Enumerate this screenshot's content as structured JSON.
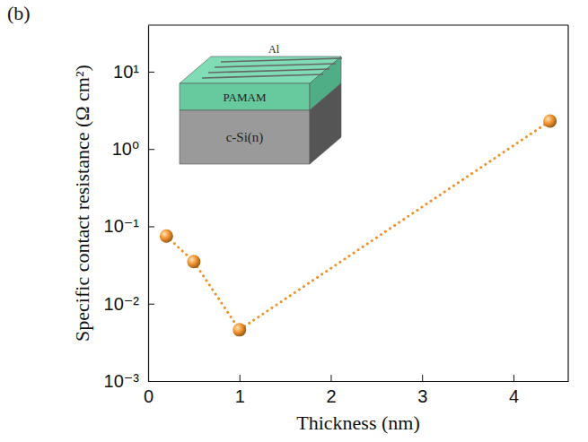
{
  "chart_data": {
    "type": "line",
    "panel_label": "(b)",
    "x_label": "Thickness (nm)",
    "y_label": "Specific contact resistance (Ω cm²)",
    "x": [
      0.2,
      0.5,
      1.0,
      4.4
    ],
    "values": [
      0.075,
      0.035,
      0.0046,
      2.3
    ],
    "color": "#f0902a",
    "marker": "circle",
    "line_style": "dotted",
    "log": "y",
    "grid": false,
    "xlim": [
      0,
      4.6
    ],
    "xticks": [
      0,
      1,
      2,
      3,
      4
    ],
    "ylim": [
      0.001,
      40
    ],
    "yticks": [
      {
        "value": 0.001,
        "label": "10⁻³"
      },
      {
        "value": 0.01,
        "label": "10⁻²"
      },
      {
        "value": 0.1,
        "label": "10⁻¹"
      },
      {
        "value": 1,
        "label": "10⁰"
      },
      {
        "value": 10,
        "label": "10¹"
      }
    ],
    "annotations": [
      "Al",
      "PAMAM",
      "c-Si(n)"
    ]
  }
}
